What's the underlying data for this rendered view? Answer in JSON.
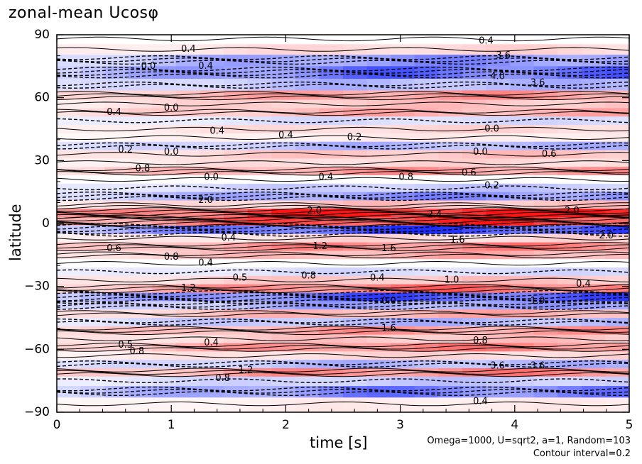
{
  "chart_data": {
    "type": "heatmap",
    "title": "zonal-mean Ucosφ",
    "xlabel": "time [s]",
    "ylabel": "latitude",
    "xlim": [
      0,
      5
    ],
    "ylim": [
      -90,
      90
    ],
    "x_ticks": [
      "0",
      "1",
      "2",
      "3",
      "4",
      "5"
    ],
    "y_ticks": [
      "90",
      "60",
      "30",
      "0",
      "−30",
      "−60",
      "−90"
    ],
    "contour_interval": 0.2,
    "colormap": {
      "negative": "#1f2ff0",
      "zero": "#ffffff",
      "positive": "#f01414"
    },
    "bands": [
      {
        "lat": 88,
        "value": 0.0
      },
      {
        "lat": 83,
        "value": 0.4
      },
      {
        "lat": 78,
        "value": -1.2
      },
      {
        "lat": 72,
        "value": -1.6
      },
      {
        "lat": 66,
        "value": -0.8
      },
      {
        "lat": 61,
        "value": 1.0
      },
      {
        "lat": 57,
        "value": 0.6
      },
      {
        "lat": 53,
        "value": 0.8
      },
      {
        "lat": 49,
        "value": -0.4
      },
      {
        "lat": 45,
        "value": 0.4
      },
      {
        "lat": 41,
        "value": 0.2
      },
      {
        "lat": 37,
        "value": -0.8
      },
      {
        "lat": 33,
        "value": 0.6
      },
      {
        "lat": 29,
        "value": 0.4
      },
      {
        "lat": 25,
        "value": 1.0
      },
      {
        "lat": 21,
        "value": 0.0
      },
      {
        "lat": 17,
        "value": -0.6
      },
      {
        "lat": 13,
        "value": -1.2
      },
      {
        "lat": 9,
        "value": 0.6
      },
      {
        "lat": 5,
        "value": 2.4
      },
      {
        "lat": 1,
        "value": 2.0
      },
      {
        "lat": -3,
        "value": -2.0
      },
      {
        "lat": -7,
        "value": 0.4
      },
      {
        "lat": -11,
        "value": 1.2
      },
      {
        "lat": -15,
        "value": 0.8
      },
      {
        "lat": -19,
        "value": 0.0
      },
      {
        "lat": -23,
        "value": -0.4
      },
      {
        "lat": -27,
        "value": 0.6
      },
      {
        "lat": -31,
        "value": 1.4
      },
      {
        "lat": -35,
        "value": -1.8
      },
      {
        "lat": -39,
        "value": -1.0
      },
      {
        "lat": -43,
        "value": 0.8
      },
      {
        "lat": -47,
        "value": -0.8
      },
      {
        "lat": -51,
        "value": 1.0
      },
      {
        "lat": -55,
        "value": 0.6
      },
      {
        "lat": -59,
        "value": 1.2
      },
      {
        "lat": -63,
        "value": 0.4
      },
      {
        "lat": -67,
        "value": -0.8
      },
      {
        "lat": -71,
        "value": 1.2
      },
      {
        "lat": -75,
        "value": -0.6
      },
      {
        "lat": -80,
        "value": -1.4
      },
      {
        "lat": -86,
        "value": 0.2
      }
    ],
    "contour_labels": [
      {
        "t": 1.15,
        "lat": 83,
        "text": "0.4"
      },
      {
        "t": 0.8,
        "lat": 75,
        "text": "0.0"
      },
      {
        "t": 1.3,
        "lat": 75,
        "text": "0.4"
      },
      {
        "t": 3.75,
        "lat": 87,
        "text": "0.4"
      },
      {
        "t": 3.9,
        "lat": 80,
        "text": "3.6"
      },
      {
        "t": 3.85,
        "lat": 70,
        "text": "4.0"
      },
      {
        "t": 4.2,
        "lat": 67,
        "text": "3.6"
      },
      {
        "t": 1.0,
        "lat": 55,
        "text": "0.0"
      },
      {
        "t": 0.5,
        "lat": 53,
        "text": "0.4"
      },
      {
        "t": 1.4,
        "lat": 44,
        "text": "0.4"
      },
      {
        "t": 2.0,
        "lat": 42,
        "text": "0.4"
      },
      {
        "t": 2.6,
        "lat": 41,
        "text": "0.2"
      },
      {
        "t": 3.8,
        "lat": 45,
        "text": "0.0"
      },
      {
        "t": 0.6,
        "lat": 35,
        "text": "0.2"
      },
      {
        "t": 1.0,
        "lat": 34,
        "text": "0.0"
      },
      {
        "t": 3.7,
        "lat": 34,
        "text": "0.0"
      },
      {
        "t": 4.3,
        "lat": 33,
        "text": "0.6"
      },
      {
        "t": 0.75,
        "lat": 26,
        "text": "0.8"
      },
      {
        "t": 1.35,
        "lat": 22,
        "text": "0.0"
      },
      {
        "t": 2.35,
        "lat": 22,
        "text": "0.4"
      },
      {
        "t": 3.05,
        "lat": 22,
        "text": "0.8"
      },
      {
        "t": 3.6,
        "lat": 24,
        "text": "0.6"
      },
      {
        "t": 3.8,
        "lat": 18,
        "text": "0.2"
      },
      {
        "t": 1.3,
        "lat": 11,
        "text": "2.0"
      },
      {
        "t": 2.25,
        "lat": 6,
        "text": "2.0"
      },
      {
        "t": 3.3,
        "lat": 4,
        "text": "2.4"
      },
      {
        "t": 4.5,
        "lat": 6,
        "text": "2.0"
      },
      {
        "t": 0.5,
        "lat": -12,
        "text": "0.6"
      },
      {
        "t": 1.5,
        "lat": -7,
        "text": "0.4"
      },
      {
        "t": 2.3,
        "lat": -11,
        "text": "1.2"
      },
      {
        "t": 2.9,
        "lat": -12,
        "text": "1.6"
      },
      {
        "t": 3.5,
        "lat": -8,
        "text": "1.6"
      },
      {
        "t": 4.8,
        "lat": -6,
        "text": "2.0"
      },
      {
        "t": 1.0,
        "lat": -16,
        "text": "0.8"
      },
      {
        "t": 1.3,
        "lat": -19,
        "text": "0.4"
      },
      {
        "t": 1.6,
        "lat": -26,
        "text": "0.5"
      },
      {
        "t": 2.2,
        "lat": -25,
        "text": "0.8"
      },
      {
        "t": 2.8,
        "lat": -26,
        "text": "0.4"
      },
      {
        "t": 3.45,
        "lat": -27,
        "text": "1.0"
      },
      {
        "t": 4.6,
        "lat": -29,
        "text": "0.4"
      },
      {
        "t": 1.15,
        "lat": -31,
        "text": "1.2"
      },
      {
        "t": 2.9,
        "lat": -37,
        "text": "0.0"
      },
      {
        "t": 4.2,
        "lat": -37,
        "text": "1.0"
      },
      {
        "t": 0.6,
        "lat": -58,
        "text": "0.5"
      },
      {
        "t": 0.7,
        "lat": -61,
        "text": "0.8"
      },
      {
        "t": 1.35,
        "lat": -57,
        "text": "0.4"
      },
      {
        "t": 2.9,
        "lat": -50,
        "text": "1.6"
      },
      {
        "t": 3.7,
        "lat": -56,
        "text": "0.8"
      },
      {
        "t": 3.85,
        "lat": -68,
        "text": "3.6"
      },
      {
        "t": 4.2,
        "lat": -68,
        "text": "3.6"
      },
      {
        "t": 1.65,
        "lat": -70,
        "text": "1.2"
      },
      {
        "t": 1.45,
        "lat": -74,
        "text": "0.8"
      },
      {
        "t": 3.7,
        "lat": -85,
        "text": "0.4"
      }
    ]
  },
  "annotations": {
    "credit_line1": "Omega=1000, U=sqrt2, a=1, Random=103",
    "credit_line2": "Contour interval=0.2"
  },
  "colors": {
    "axis": "#000000",
    "contour": "#000000"
  }
}
